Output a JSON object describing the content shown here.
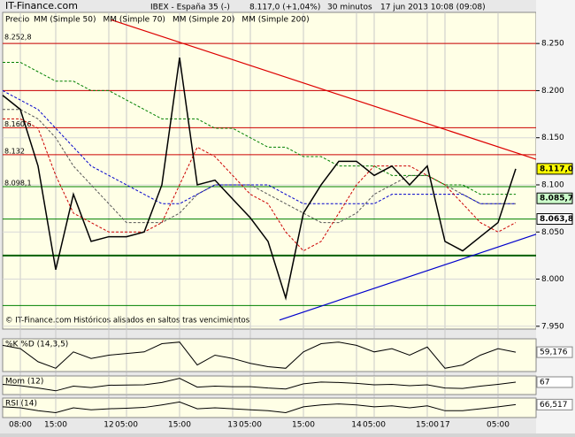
{
  "chart_data": {
    "type": "line",
    "brand": "IT-Finance.com",
    "header": [
      "IBEX - España 35 (-)",
      "8.117,0 (+1,04%)",
      "30 minutos",
      "17 jun 2013 10:08 (09:08)"
    ],
    "price_name": "Precio",
    "footnote": "© IT-Finance.com  Históricos alisados en saltos tras vencimientos",
    "categories": [
      null,
      "08:00",
      null,
      "15:00",
      null,
      null,
      "12",
      "05:00",
      null,
      null,
      "15:00",
      null,
      null,
      "13",
      "05:00",
      null,
      null,
      "15:00",
      null,
      null,
      "14",
      "05:00",
      null,
      null,
      "15:00",
      "17",
      null,
      null,
      "05:00",
      null
    ],
    "ylim": [
      7.947,
      8.283
    ],
    "yticks": [
      {
        "value": 7.95,
        "label": "7.950"
      },
      {
        "value": 8,
        "label": "8.000"
      },
      {
        "value": 8.05,
        "label": "8.050"
      },
      {
        "value": 8.1,
        "label": "8.100"
      },
      {
        "value": 8.15,
        "label": "8.150"
      },
      {
        "value": 8.2,
        "label": "8.200"
      },
      {
        "value": 8.25,
        "label": "8.250"
      }
    ],
    "grid": true,
    "price": {
      "color": "#000000",
      "values": [
        8.195,
        8.18,
        8.12,
        8.01,
        8.09,
        8.04,
        8.045,
        8.045,
        8.05,
        8.1,
        8.235,
        8.1,
        8.105,
        8.085,
        8.065,
        8.04,
        7.98,
        8.07,
        8.1,
        8.125,
        8.125,
        8.11,
        8.12,
        8.1,
        8.12,
        8.04,
        8.03,
        8.045,
        8.06,
        8.117
      ]
    },
    "series": [
      {
        "name": "MM (Simple 50)",
        "color": "#555555",
        "values": [
          8.18,
          8.18,
          8.17,
          8.15,
          8.12,
          8.1,
          8.08,
          8.06,
          8.06,
          8.06,
          8.07,
          8.09,
          8.1,
          8.1,
          8.1,
          8.09,
          8.08,
          8.07,
          8.06,
          8.06,
          8.07,
          8.09,
          8.1,
          8.11,
          8.11,
          8.1,
          8.09,
          8.08,
          8.08,
          8.08
        ]
      },
      {
        "name": "MM (Simple 70)",
        "color": "#0000cc",
        "values": [
          8.2,
          8.19,
          8.18,
          8.16,
          8.14,
          8.12,
          8.11,
          8.1,
          8.09,
          8.08,
          8.08,
          8.09,
          8.1,
          8.1,
          8.1,
          8.1,
          8.09,
          8.08,
          8.08,
          8.08,
          8.08,
          8.08,
          8.09,
          8.09,
          8.09,
          8.09,
          8.09,
          8.08,
          8.08,
          8.08
        ]
      },
      {
        "name": "MM (Simple 20)",
        "color": "#cc0000",
        "values": [
          8.17,
          8.17,
          8.16,
          8.11,
          8.07,
          8.06,
          8.05,
          8.05,
          8.05,
          8.06,
          8.1,
          8.14,
          8.13,
          8.11,
          8.09,
          8.08,
          8.05,
          8.03,
          8.04,
          8.07,
          8.1,
          8.12,
          8.12,
          8.12,
          8.11,
          8.1,
          8.08,
          8.06,
          8.05,
          8.06
        ]
      },
      {
        "name": "MM (Simple 200)",
        "color": "#008000",
        "values": [
          8.23,
          8.23,
          8.22,
          8.21,
          8.21,
          8.2,
          8.2,
          8.19,
          8.18,
          8.17,
          8.17,
          8.17,
          8.16,
          8.16,
          8.15,
          8.14,
          8.14,
          8.13,
          8.13,
          8.12,
          8.12,
          8.12,
          8.11,
          8.11,
          8.11,
          8.1,
          8.1,
          8.09,
          8.09,
          8.09
        ]
      }
    ],
    "levels": [
      {
        "value": 8.25,
        "color": "#cc0000"
      },
      {
        "value": 8.2,
        "color": "#cc0000"
      },
      {
        "value": 8.1606,
        "color": "#cc0000"
      },
      {
        "value": 8.132,
        "color": "#cc0000"
      },
      {
        "value": 8.0981,
        "color": "#008000"
      },
      {
        "value": 8.0637,
        "color": "#008000"
      },
      {
        "value": 8.025,
        "color": "#006000"
      },
      {
        "value": 7.972,
        "color": "#008000"
      }
    ],
    "level_labels": [
      {
        "value": 8.2528,
        "label": "8.252,8"
      },
      {
        "value": 8.1606,
        "label": "8.160,6"
      },
      {
        "value": 8.132,
        "label": "8.132"
      },
      {
        "value": 8.0981,
        "label": "8.098,1"
      }
    ],
    "price_boxes": [
      {
        "value": 8.117,
        "label": "8.117,0",
        "color": "#ffff00"
      },
      {
        "value": 8.0857,
        "label": "8.085,7",
        "color": "#ccffcc"
      },
      {
        "value": 8.0638,
        "label": "8.063,8",
        "color": "#ffffff"
      }
    ],
    "trendlines": [
      {
        "color": "#dd0000",
        "x": [
          6.1,
          30.15
        ],
        "values": [
          8.2753,
          8.1271
        ]
      },
      {
        "color": "#0000cc",
        "x": [
          15.65,
          30.15
        ],
        "values": [
          7.9566,
          8.0476
        ]
      }
    ],
    "panels": [
      {
        "name": "%K %D (14,3,5)",
        "ylim": [
          0,
          100
        ],
        "color": "#000000",
        "last": {
          "value": 59.176,
          "label": "59,176"
        },
        "values": [
          80,
          70,
          30,
          10,
          60,
          40,
          50,
          55,
          60,
          85,
          90,
          20,
          50,
          40,
          25,
          15,
          10,
          60,
          85,
          90,
          80,
          60,
          70,
          50,
          75,
          10,
          20,
          50,
          70,
          59.176
        ]
      },
      {
        "name": "Mom (12)",
        "ylim": [
          -200,
          200
        ],
        "color": "#000000",
        "last": {
          "value": 67,
          "label": "67"
        },
        "values": [
          20,
          -10,
          -60,
          -120,
          -20,
          -50,
          0,
          5,
          10,
          60,
          150,
          -40,
          -20,
          -30,
          -30,
          -60,
          -80,
          30,
          70,
          60,
          40,
          10,
          20,
          -10,
          10,
          -60,
          -70,
          -20,
          20,
          67
        ]
      },
      {
        "name": "RSI (14)",
        "ylim": [
          0,
          100
        ],
        "color": "#000000",
        "last": {
          "value": 66.517,
          "label": "66,517"
        },
        "values": [
          55,
          50,
          35,
          25,
          50,
          40,
          45,
          48,
          52,
          65,
          80,
          45,
          50,
          45,
          40,
          35,
          25,
          55,
          65,
          70,
          65,
          55,
          60,
          50,
          60,
          35,
          35,
          45,
          55,
          66.517
        ]
      }
    ]
  }
}
